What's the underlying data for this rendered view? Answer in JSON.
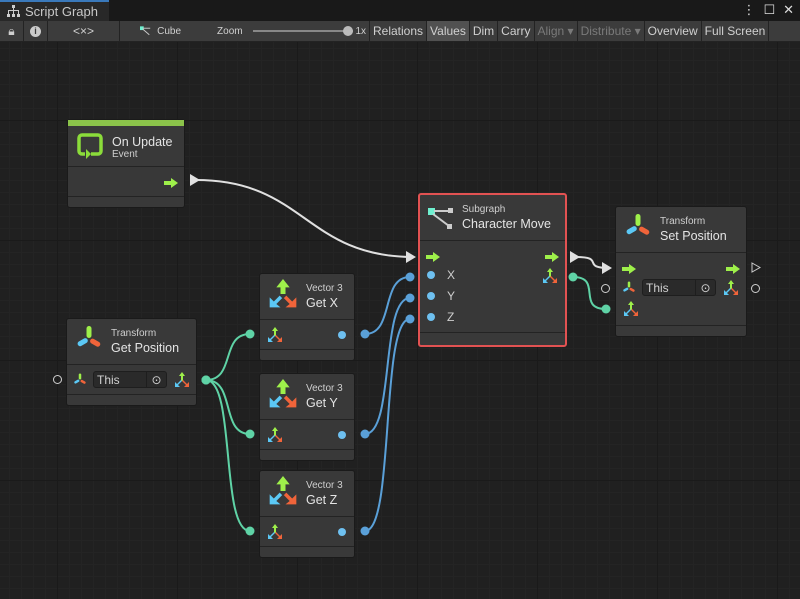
{
  "window": {
    "tab_title": "Script Graph",
    "menu_icon": "kebab-icon",
    "maximize_icon": "maximize-icon",
    "close_icon": "close-icon"
  },
  "toolbar": {
    "lock_icon": "lock-icon",
    "info_icon": "info-icon",
    "variables_label": "<×>",
    "target_label": "Cube",
    "zoom_label": "Zoom",
    "zoom_value": "1x",
    "zoom_level": 1.0,
    "buttons": [
      {
        "label": "Relations",
        "enabled": true,
        "active": false
      },
      {
        "label": "Values",
        "enabled": true,
        "active": true
      },
      {
        "label": "Dim",
        "enabled": true,
        "active": false
      },
      {
        "label": "Carry",
        "enabled": true,
        "active": false
      },
      {
        "label": "Align ▾",
        "enabled": false,
        "active": false
      },
      {
        "label": "Distribute ▾",
        "enabled": false,
        "active": false
      },
      {
        "label": "Overview",
        "enabled": true,
        "active": false
      },
      {
        "label": "Full Screen",
        "enabled": true,
        "active": false
      }
    ]
  },
  "nodes": {
    "on_update": {
      "title": "On Update",
      "subtitle": "Event",
      "accent": "#8bc34a"
    },
    "get_position": {
      "category": "Transform",
      "title": "Get Position",
      "field": "This"
    },
    "get_x": {
      "category": "Vector 3",
      "title": "Get X"
    },
    "get_y": {
      "category": "Vector 3",
      "title": "Get Y"
    },
    "get_z": {
      "category": "Vector 3",
      "title": "Get Z"
    },
    "character_move": {
      "category": "Subgraph",
      "title": "Character Move",
      "inputs": [
        "X",
        "Y",
        "Z"
      ],
      "selected_color": "#e25252"
    },
    "set_position": {
      "category": "Transform",
      "title": "Set Position",
      "field": "This"
    }
  },
  "colors": {
    "flow": "#9ef04a",
    "flow_wire": "#e0e0e0",
    "vector_wire": "#5fd3a6",
    "float_wire": "#5aa0d8"
  }
}
